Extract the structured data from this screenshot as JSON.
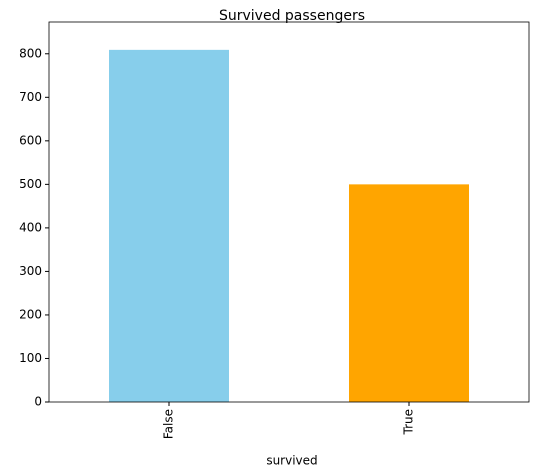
{
  "chart_data": {
    "type": "bar",
    "title": "Survived passengers",
    "x_label": "survived",
    "categories": [
      "False",
      "True"
    ],
    "values": [
      809,
      500
    ],
    "colors": [
      "#87ceeb",
      "#ffa500"
    ],
    "ylim": [
      0,
      873
    ],
    "yticks": [
      0,
      100,
      200,
      300,
      400,
      500,
      600,
      700,
      800
    ],
    "grid": false
  }
}
